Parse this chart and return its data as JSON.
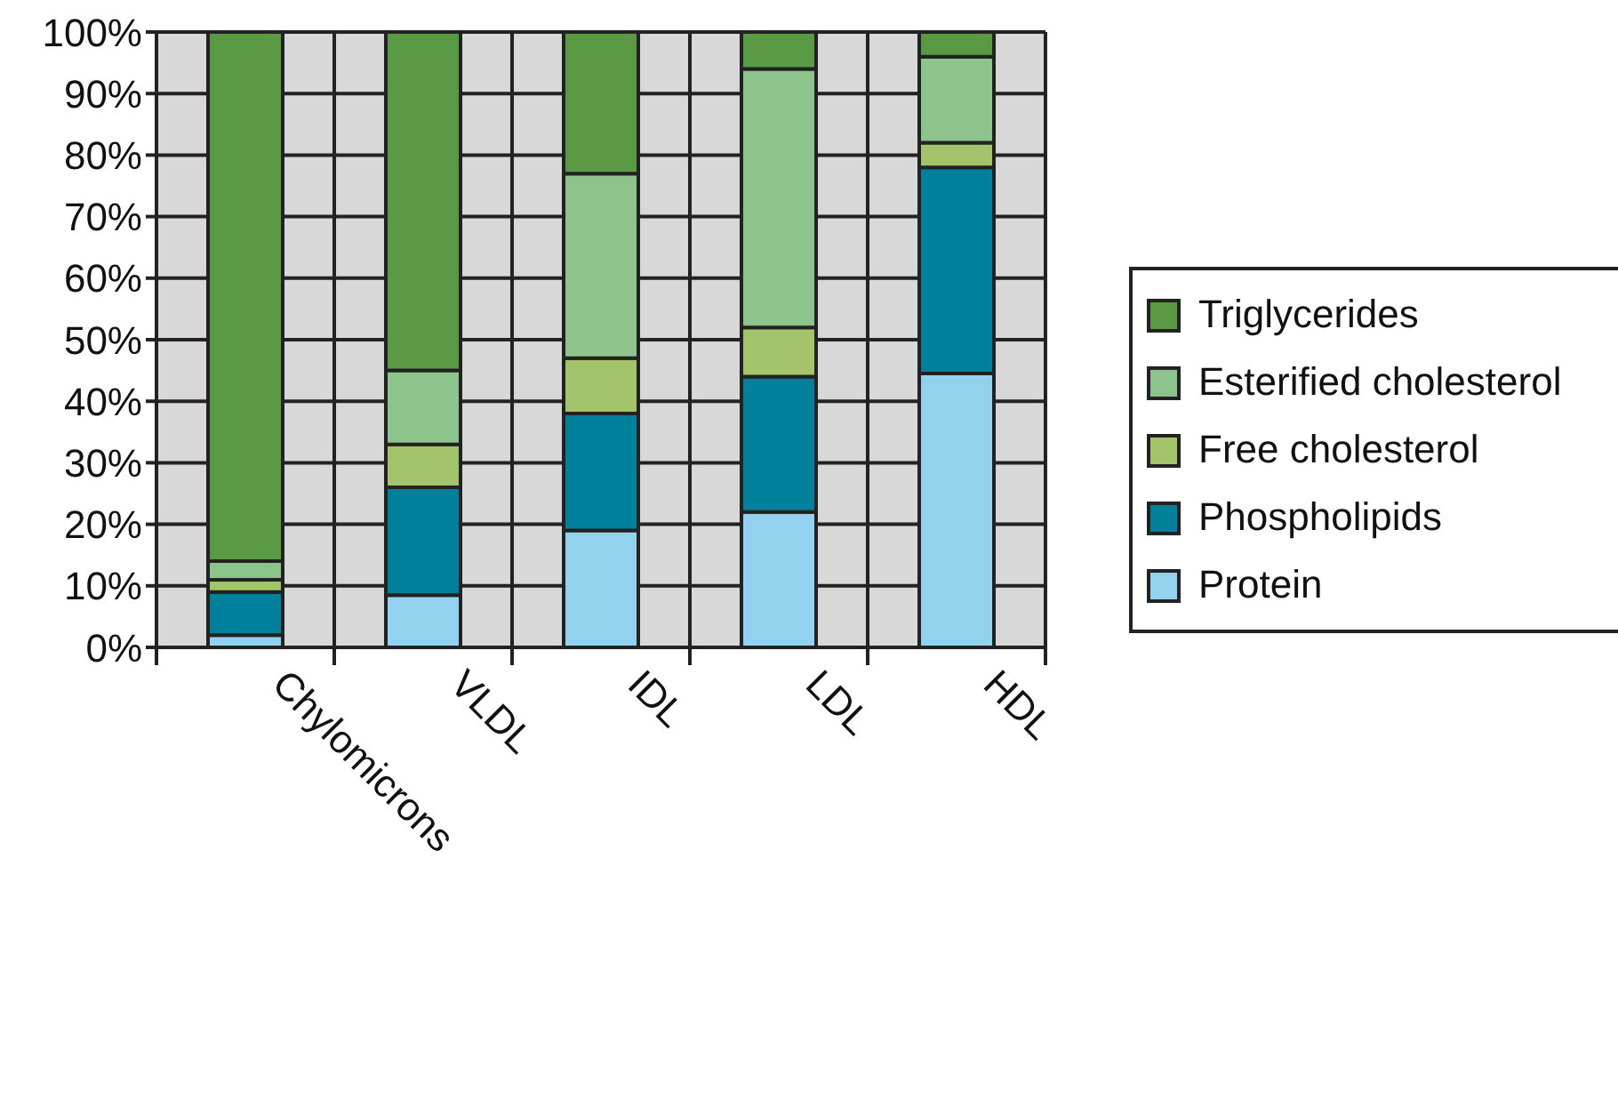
{
  "chart_data": {
    "type": "bar",
    "stacked": true,
    "categories": [
      "Chylomicrons",
      "VLDL",
      "IDL",
      "LDL",
      "HDL"
    ],
    "series": [
      {
        "name": "Protein",
        "color": "#92d2ee",
        "values": [
          2,
          8.5,
          19,
          22,
          44.5
        ]
      },
      {
        "name": "Phospholipids",
        "color": "#00809a",
        "values": [
          7,
          17.5,
          19,
          22,
          33.5
        ]
      },
      {
        "name": "Free cholesterol",
        "color": "#a3c46a",
        "values": [
          2,
          7,
          9,
          8,
          4
        ]
      },
      {
        "name": "Esterified cholesterol",
        "color": "#8cc48c",
        "values": [
          3,
          12,
          30,
          42,
          14
        ]
      },
      {
        "name": "Triglycerides",
        "color": "#5a9a45",
        "values": [
          86,
          55,
          23,
          6,
          4
        ]
      }
    ],
    "ylim": [
      0,
      100
    ],
    "yticks": [
      {
        "value": 0,
        "label": "0%"
      },
      {
        "value": 10,
        "label": "10%"
      },
      {
        "value": 20,
        "label": "20%"
      },
      {
        "value": 30,
        "label": "30%"
      },
      {
        "value": 40,
        "label": "40%"
      },
      {
        "value": 50,
        "label": "50%"
      },
      {
        "value": 60,
        "label": "60%"
      },
      {
        "value": 70,
        "label": "70%"
      },
      {
        "value": 80,
        "label": "80%"
      },
      {
        "value": 90,
        "label": "90%"
      },
      {
        "value": 100,
        "label": "100%"
      }
    ],
    "grid": true,
    "legend": "right"
  }
}
